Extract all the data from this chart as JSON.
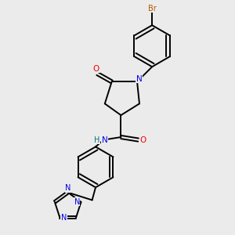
{
  "bg_color": "#ebebeb",
  "atom_colors": {
    "C": "#000000",
    "N": "#0000ee",
    "O": "#ee0000",
    "Br": "#bb5500",
    "H": "#007777"
  },
  "bond_color": "#000000",
  "bond_width": 1.4,
  "fig_w": 3.0,
  "fig_h": 3.0,
  "dpi": 100
}
